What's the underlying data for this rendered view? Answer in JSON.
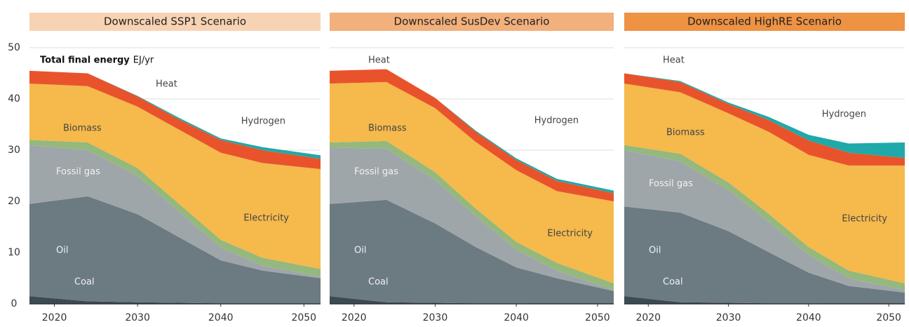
{
  "chart_data": [
    {
      "type": "area",
      "title": "Downscaled SSP1 Scenario",
      "header_color": "#f8d3b3",
      "y_label": "Total final energy",
      "unit": "EJ/yr",
      "x": [
        2017,
        2024,
        2030,
        2035,
        2040,
        2045,
        2052
      ],
      "xlim": [
        2017,
        2052
      ],
      "xticks": [
        2020,
        2030,
        2040,
        2050
      ],
      "ylim": [
        0,
        50
      ],
      "yticks": [
        0,
        10,
        20,
        30,
        40,
        50
      ],
      "grid": true,
      "series": [
        {
          "name": "Coal",
          "color": "#3c4a52",
          "values": [
            1.5,
            0.5,
            0.3,
            0.2,
            0.1,
            0.1,
            0.1
          ]
        },
        {
          "name": "Oil",
          "color": "#6c7a82",
          "values": [
            18,
            20.5,
            17.2,
            12.8,
            8.4,
            6.4,
            4.9
          ]
        },
        {
          "name": "Fossil gas",
          "color": "#9fa6aa",
          "values": [
            11.5,
            9,
            7.5,
            5,
            2.5,
            1,
            0.3
          ]
        },
        {
          "name": "Biomass",
          "color": "#95b87c",
          "values": [
            1,
            1.5,
            1.5,
            1.5,
            1.5,
            1.5,
            1.5
          ]
        },
        {
          "name": "Electricity",
          "color": "#f5b94c",
          "values": [
            11,
            11,
            12,
            14.5,
            17,
            18.5,
            19.5
          ]
        },
        {
          "name": "Heat",
          "color": "#e9532b",
          "values": [
            2.5,
            2.5,
            2,
            2,
            2.5,
            2.5,
            2
          ]
        },
        {
          "name": "Hydrogen",
          "color": "#1fa9a9",
          "values": [
            0,
            0,
            0.1,
            0.3,
            0.3,
            0.6,
            0.7
          ]
        }
      ]
    },
    {
      "type": "area",
      "title": "Downscaled SusDev Scenario",
      "header_color": "#f2b07c",
      "x": [
        2017,
        2024,
        2030,
        2035,
        2040,
        2045,
        2052
      ],
      "xlim": [
        2017,
        2052
      ],
      "xticks": [
        2020,
        2030,
        2040,
        2050
      ],
      "ylim": [
        0,
        50
      ],
      "yticks": [
        0,
        10,
        20,
        30,
        40,
        50
      ],
      "grid": true,
      "series": [
        {
          "name": "Coal",
          "color": "#3c4a52",
          "values": [
            1.5,
            0.3,
            0.2,
            0.1,
            0.1,
            0,
            0
          ]
        },
        {
          "name": "Oil",
          "color": "#6c7a82",
          "values": [
            18,
            20,
            15.5,
            11,
            7,
            5,
            2.5
          ]
        },
        {
          "name": "Fossil gas",
          "color": "#9fa6aa",
          "values": [
            11,
            10,
            8.5,
            6,
            3.5,
            1.5,
            0.2
          ]
        },
        {
          "name": "Biomass",
          "color": "#95b87c",
          "values": [
            1,
            1.5,
            1.5,
            1.5,
            1.5,
            1.5,
            1.3
          ]
        },
        {
          "name": "Electricity",
          "color": "#f5b94c",
          "values": [
            11.5,
            11.5,
            12.5,
            13,
            14,
            14,
            16
          ]
        },
        {
          "name": "Heat",
          "color": "#e9532b",
          "values": [
            2.5,
            2.5,
            2,
            2,
            2,
            2,
            1.6
          ]
        },
        {
          "name": "Hydrogen",
          "color": "#1fa9a9",
          "values": [
            0,
            0,
            0,
            0.2,
            0.3,
            0.4,
            0.5
          ]
        }
      ]
    },
    {
      "type": "area",
      "title": "Downscaled HighRE Scenario",
      "header_color": "#ee9243",
      "x": [
        2017,
        2024,
        2030,
        2035,
        2040,
        2045,
        2052
      ],
      "xlim": [
        2017,
        2052
      ],
      "xticks": [
        2020,
        2030,
        2040,
        2050
      ],
      "ylim": [
        0,
        50
      ],
      "yticks": [
        0,
        10,
        20,
        30,
        40,
        50
      ],
      "grid": true,
      "series": [
        {
          "name": "Coal",
          "color": "#3c4a52",
          "values": [
            1.5,
            0.3,
            0.2,
            0.1,
            0.1,
            0,
            0
          ]
        },
        {
          "name": "Oil",
          "color": "#6c7a82",
          "values": [
            17.5,
            17.5,
            14,
            10,
            6,
            3.5,
            2.2
          ]
        },
        {
          "name": "Fossil gas",
          "color": "#9fa6aa",
          "values": [
            11,
            10,
            8,
            6,
            3.5,
            1.5,
            0.5
          ]
        },
        {
          "name": "Biomass",
          "color": "#95b87c",
          "values": [
            1,
            1.5,
            1.5,
            1.5,
            1.5,
            1.5,
            1.3
          ]
        },
        {
          "name": "Electricity",
          "color": "#f5b94c",
          "values": [
            12,
            12,
            13.5,
            16,
            18,
            20.5,
            23
          ]
        },
        {
          "name": "Heat",
          "color": "#e9532b",
          "values": [
            2,
            2,
            1.8,
            2.3,
            2.8,
            2.5,
            1.5
          ]
        },
        {
          "name": "Hydrogen",
          "color": "#1fa9a9",
          "values": [
            0,
            0.2,
            0.3,
            0.6,
            1.1,
            1.8,
            3
          ]
        }
      ]
    }
  ]
}
